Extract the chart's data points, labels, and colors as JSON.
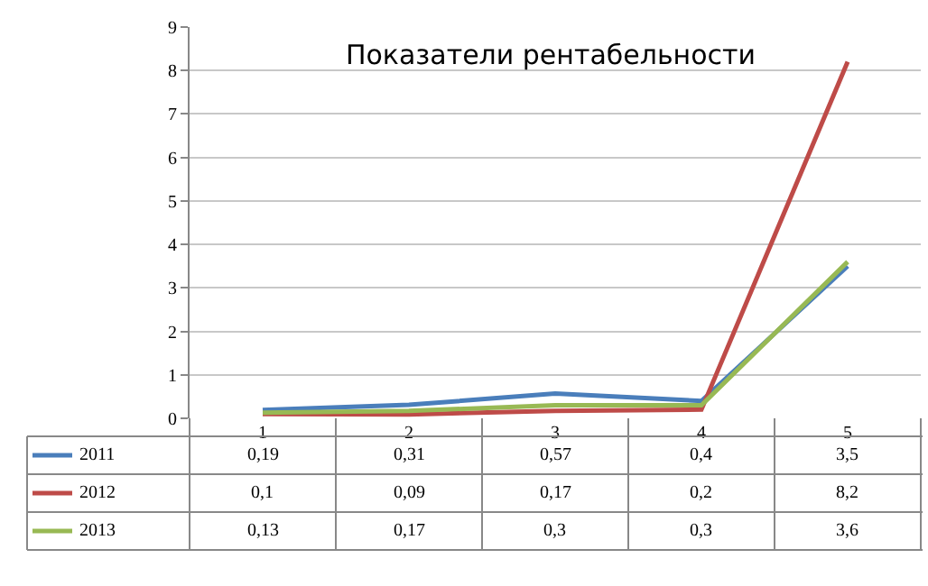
{
  "chart_data": {
    "type": "line",
    "title": "Показатели рентабельности",
    "categories": [
      "1",
      "2",
      "3",
      "4",
      "5"
    ],
    "series": [
      {
        "name": "2011",
        "color": "#4a7ebb",
        "values": [
          0.19,
          0.31,
          0.57,
          0.4,
          3.5
        ],
        "value_labels": [
          "0,19",
          "0,31",
          "0,57",
          "0,4",
          "3,5"
        ]
      },
      {
        "name": "2012",
        "color": "#be4b48",
        "values": [
          0.1,
          0.09,
          0.17,
          0.2,
          8.2
        ],
        "value_labels": [
          "0,1",
          "0,09",
          "0,17",
          "0,2",
          "8,2"
        ]
      },
      {
        "name": "2013",
        "color": "#98b954",
        "values": [
          0.13,
          0.17,
          0.3,
          0.3,
          3.6
        ],
        "value_labels": [
          "0,13",
          "0,17",
          "0,3",
          "0,3",
          "3,6"
        ]
      }
    ],
    "ylim": [
      0,
      9
    ],
    "yticks": [
      0,
      1,
      2,
      3,
      4,
      5,
      6,
      7,
      8,
      9
    ],
    "grid": "y",
    "legend": "bottom",
    "marker": "none",
    "line_style": "solid"
  }
}
